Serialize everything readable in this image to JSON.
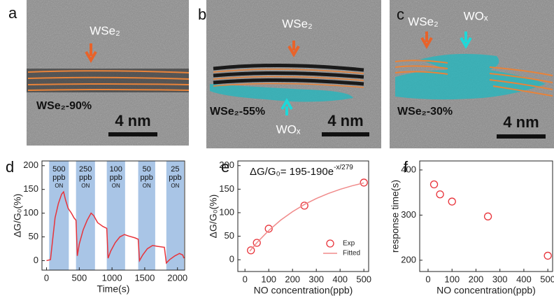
{
  "images": [
    {
      "panel": "a",
      "layer_label": "WSe₂",
      "composition": "WSe₂-90%",
      "scale": "4 nm"
    },
    {
      "panel": "b",
      "layer_label": "WSe₂",
      "oxide_label": "WOₓ",
      "composition": "WSe₂-55%",
      "scale": "4 nm"
    },
    {
      "panel": "c",
      "layer_label": "WSe₂",
      "oxide_label": "WOₓ",
      "composition": "WSe₂-30%",
      "scale": "4 nm"
    }
  ],
  "chart_data": [
    {
      "type": "line",
      "panel": "d",
      "x_label": "Time(s)",
      "y_label": "ΔG/G₀(%)",
      "xlim": [
        -70,
        2110
      ],
      "ylim": [
        -20,
        210
      ],
      "xticks": [
        0,
        500,
        1000,
        1500,
        2000
      ],
      "yticks": [
        0,
        50,
        100,
        150,
        200
      ],
      "shaded_color": "#a9c5e6",
      "shaded": [
        {
          "start": 40,
          "end": 340,
          "labels": [
            "500",
            "ppb",
            "ON"
          ]
        },
        {
          "start": 450,
          "end": 740,
          "labels": [
            "250",
            "ppb",
            "ON"
          ]
        },
        {
          "start": 920,
          "end": 1200,
          "labels": [
            "100",
            "ppb",
            "ON"
          ]
        },
        {
          "start": 1400,
          "end": 1660,
          "labels": [
            "50",
            "ppb",
            "ON"
          ]
        },
        {
          "start": 1830,
          "end": 2100,
          "labels": [
            "25",
            "ppb",
            "ON"
          ]
        }
      ],
      "series": [
        {
          "type": "line",
          "color": "#e8333a",
          "x": [
            0,
            60,
            90,
            130,
            180,
            230,
            260,
            290,
            330,
            380,
            420,
            450,
            470,
            500,
            560,
            620,
            680,
            720,
            780,
            860,
            920,
            940,
            980,
            1050,
            1120,
            1190,
            1250,
            1350,
            1400,
            1420,
            1470,
            1540,
            1620,
            1700,
            1800,
            1830,
            1880,
            1960,
            2030,
            2080,
            2100
          ],
          "values": [
            0,
            2,
            40,
            90,
            120,
            140,
            145,
            128,
            110,
            100,
            90,
            85,
            10,
            35,
            65,
            85,
            100,
            95,
            80,
            72,
            68,
            5,
            20,
            38,
            50,
            55,
            52,
            48,
            45,
            0,
            12,
            25,
            32,
            30,
            28,
            -5,
            2,
            10,
            15,
            12,
            5
          ]
        }
      ]
    },
    {
      "type": "scatter",
      "panel": "e",
      "x_label": "NO concentration(ppb)",
      "y_label": "ΔG/G₀(%)",
      "equation": {
        "text": "ΔG/G₀= 195-190e",
        "superscript": "-x/279"
      },
      "xlim": [
        -30,
        520
      ],
      "ylim": [
        -25,
        210
      ],
      "xticks": [
        0,
        100,
        200,
        300,
        400,
        500
      ],
      "yticks": [
        0,
        50,
        100,
        150,
        200
      ],
      "legend": "lower right",
      "series": [
        {
          "type": "scatter",
          "name": "Exp",
          "color": "#e8333a",
          "x": [
            25,
            50,
            100,
            250,
            500
          ],
          "values": [
            20,
            36,
            66,
            115,
            164
          ]
        },
        {
          "type": "line",
          "name": "Fitted",
          "color": "#f08a8a",
          "x": [
            20,
            50,
            100,
            150,
            200,
            250,
            300,
            350,
            400,
            450,
            500
          ],
          "values": [
            18.1,
            36.2,
            62.2,
            84.1,
            102.2,
            117.5,
            130.2,
            140.8,
            149.7,
            157.1,
            163.3
          ]
        }
      ]
    },
    {
      "type": "scatter",
      "panel": "f",
      "x_label": "NO concentration(ppb)",
      "y_label": "response time(s)",
      "xlim": [
        -35,
        520
      ],
      "ylim": [
        175,
        420
      ],
      "xticks": [
        0,
        100,
        200,
        300,
        400,
        500
      ],
      "yticks": [
        200,
        300,
        400
      ],
      "series": [
        {
          "type": "scatter",
          "color": "#e8333a",
          "x": [
            25,
            50,
            100,
            250,
            500
          ],
          "values": [
            368,
            346,
            330,
            297,
            210
          ]
        }
      ]
    }
  ]
}
